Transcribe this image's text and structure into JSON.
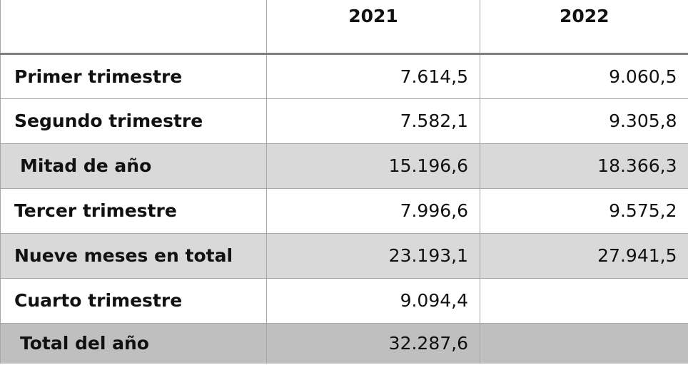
{
  "table": {
    "header": [
      "2021",
      "2022"
    ],
    "rows": [
      {
        "label": "Primer trimestre",
        "values": [
          "7.614,5",
          "9.060,5"
        ]
      },
      {
        "label": "Segundo trimestre",
        "values": [
          "7.582,1",
          "9.305,8"
        ]
      },
      {
        "label": "Mitad de año",
        "values": [
          "15.196,6",
          "18.366,3"
        ],
        "shade": "#d9d9d9",
        "indent": true
      },
      {
        "label": "Tercer trimestre",
        "values": [
          "7.996,6",
          "9.575,2"
        ]
      },
      {
        "label": "Nueve meses en total",
        "values": [
          "23.193,1",
          "27.941,5"
        ],
        "shade": "#d9d9d9"
      },
      {
        "label": "Cuarto trimestre",
        "values": [
          "9.094,4"
        ]
      },
      {
        "label": "Total del año",
        "values": [
          "32.287,6"
        ],
        "shade": "#bfbfbf",
        "indent": true
      }
    ]
  }
}
